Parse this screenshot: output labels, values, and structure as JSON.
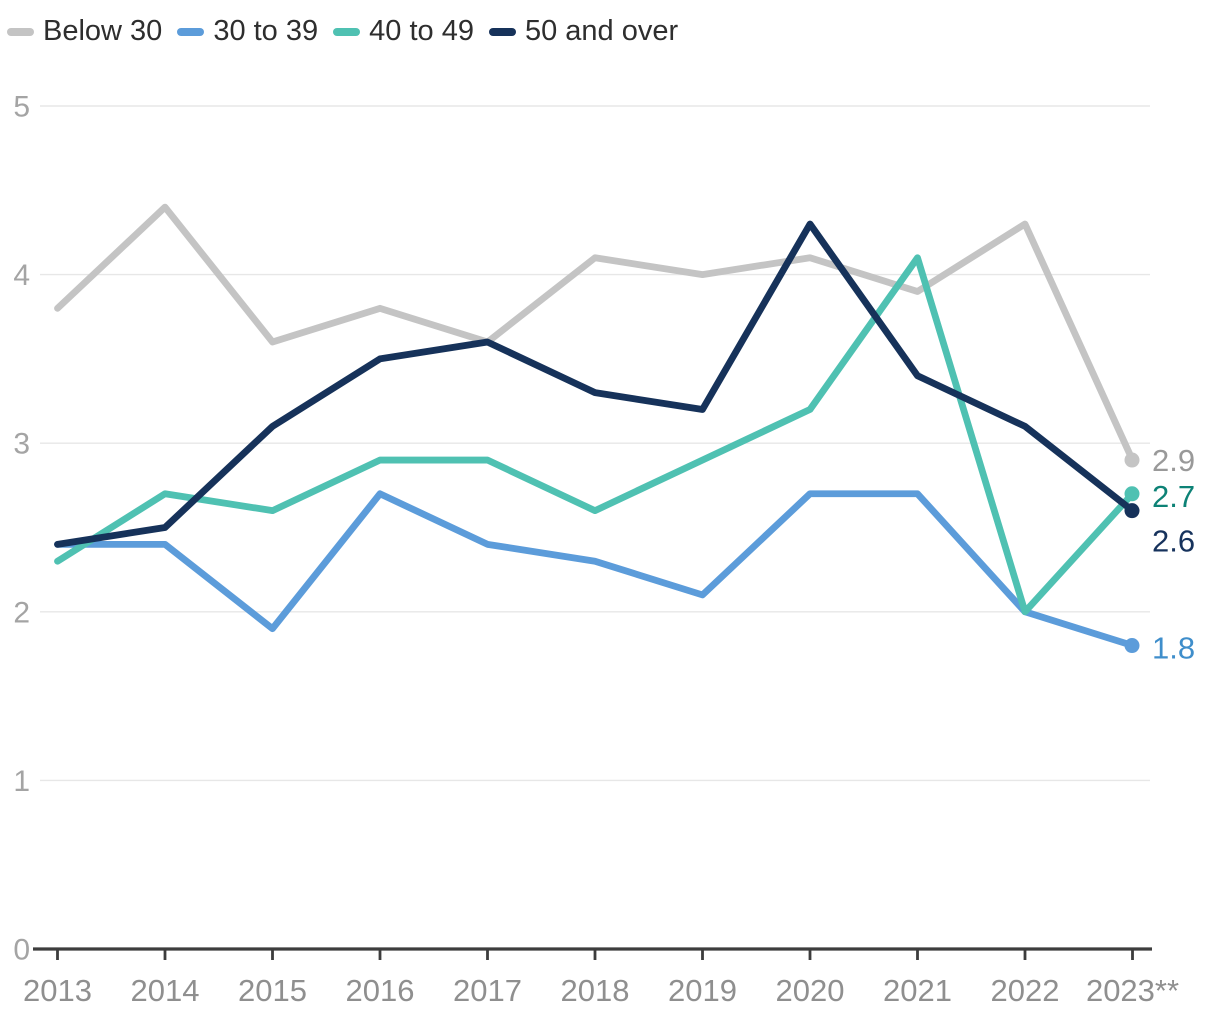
{
  "chart_data": {
    "type": "line",
    "x": [
      "2013",
      "2014",
      "2015",
      "2016",
      "2017",
      "2018",
      "2019",
      "2020",
      "2021",
      "2022",
      "2023**"
    ],
    "series": [
      {
        "name": "Below 30",
        "color": "#c4c4c4",
        "values": [
          3.8,
          4.4,
          3.6,
          3.8,
          3.6,
          4.1,
          4.0,
          4.1,
          3.9,
          4.3,
          2.9
        ],
        "end_label": "2.9",
        "end_label_color": "#999999",
        "end_label_dy": 0
      },
      {
        "name": "30 to 39",
        "color": "#5c9cda",
        "values": [
          2.4,
          2.4,
          1.9,
          2.7,
          2.4,
          2.3,
          2.1,
          2.7,
          2.7,
          2.0,
          1.8
        ],
        "end_label": "1.8",
        "end_label_color": "#3f8ecb",
        "end_label_dy": 2
      },
      {
        "name": "40 to 49",
        "color": "#4fc1b2",
        "values": [
          2.3,
          2.7,
          2.6,
          2.9,
          2.9,
          2.6,
          2.9,
          3.2,
          4.1,
          2.0,
          2.7
        ],
        "end_label": "2.7",
        "end_label_color": "#0d8276",
        "end_label_dy": 2
      },
      {
        "name": "50 and over",
        "color": "#16325a",
        "values": [
          2.4,
          2.5,
          3.1,
          3.5,
          3.6,
          3.3,
          3.2,
          4.3,
          3.4,
          3.1,
          2.6
        ],
        "end_label": "2.6",
        "end_label_color": "#16325c",
        "end_label_dy": 30
      }
    ],
    "ylim": [
      0,
      5
    ],
    "yticks": [
      0,
      1,
      2,
      3,
      4,
      5
    ],
    "grid": true,
    "legend_position": "top-left",
    "title": "",
    "xlabel": "",
    "ylabel": ""
  },
  "style_colors": {
    "grid": "#e7e7e7",
    "axis": "#3d3d3d",
    "y_tick_label": "#a4a4a4",
    "x_tick_label": "#8f8f8f"
  }
}
